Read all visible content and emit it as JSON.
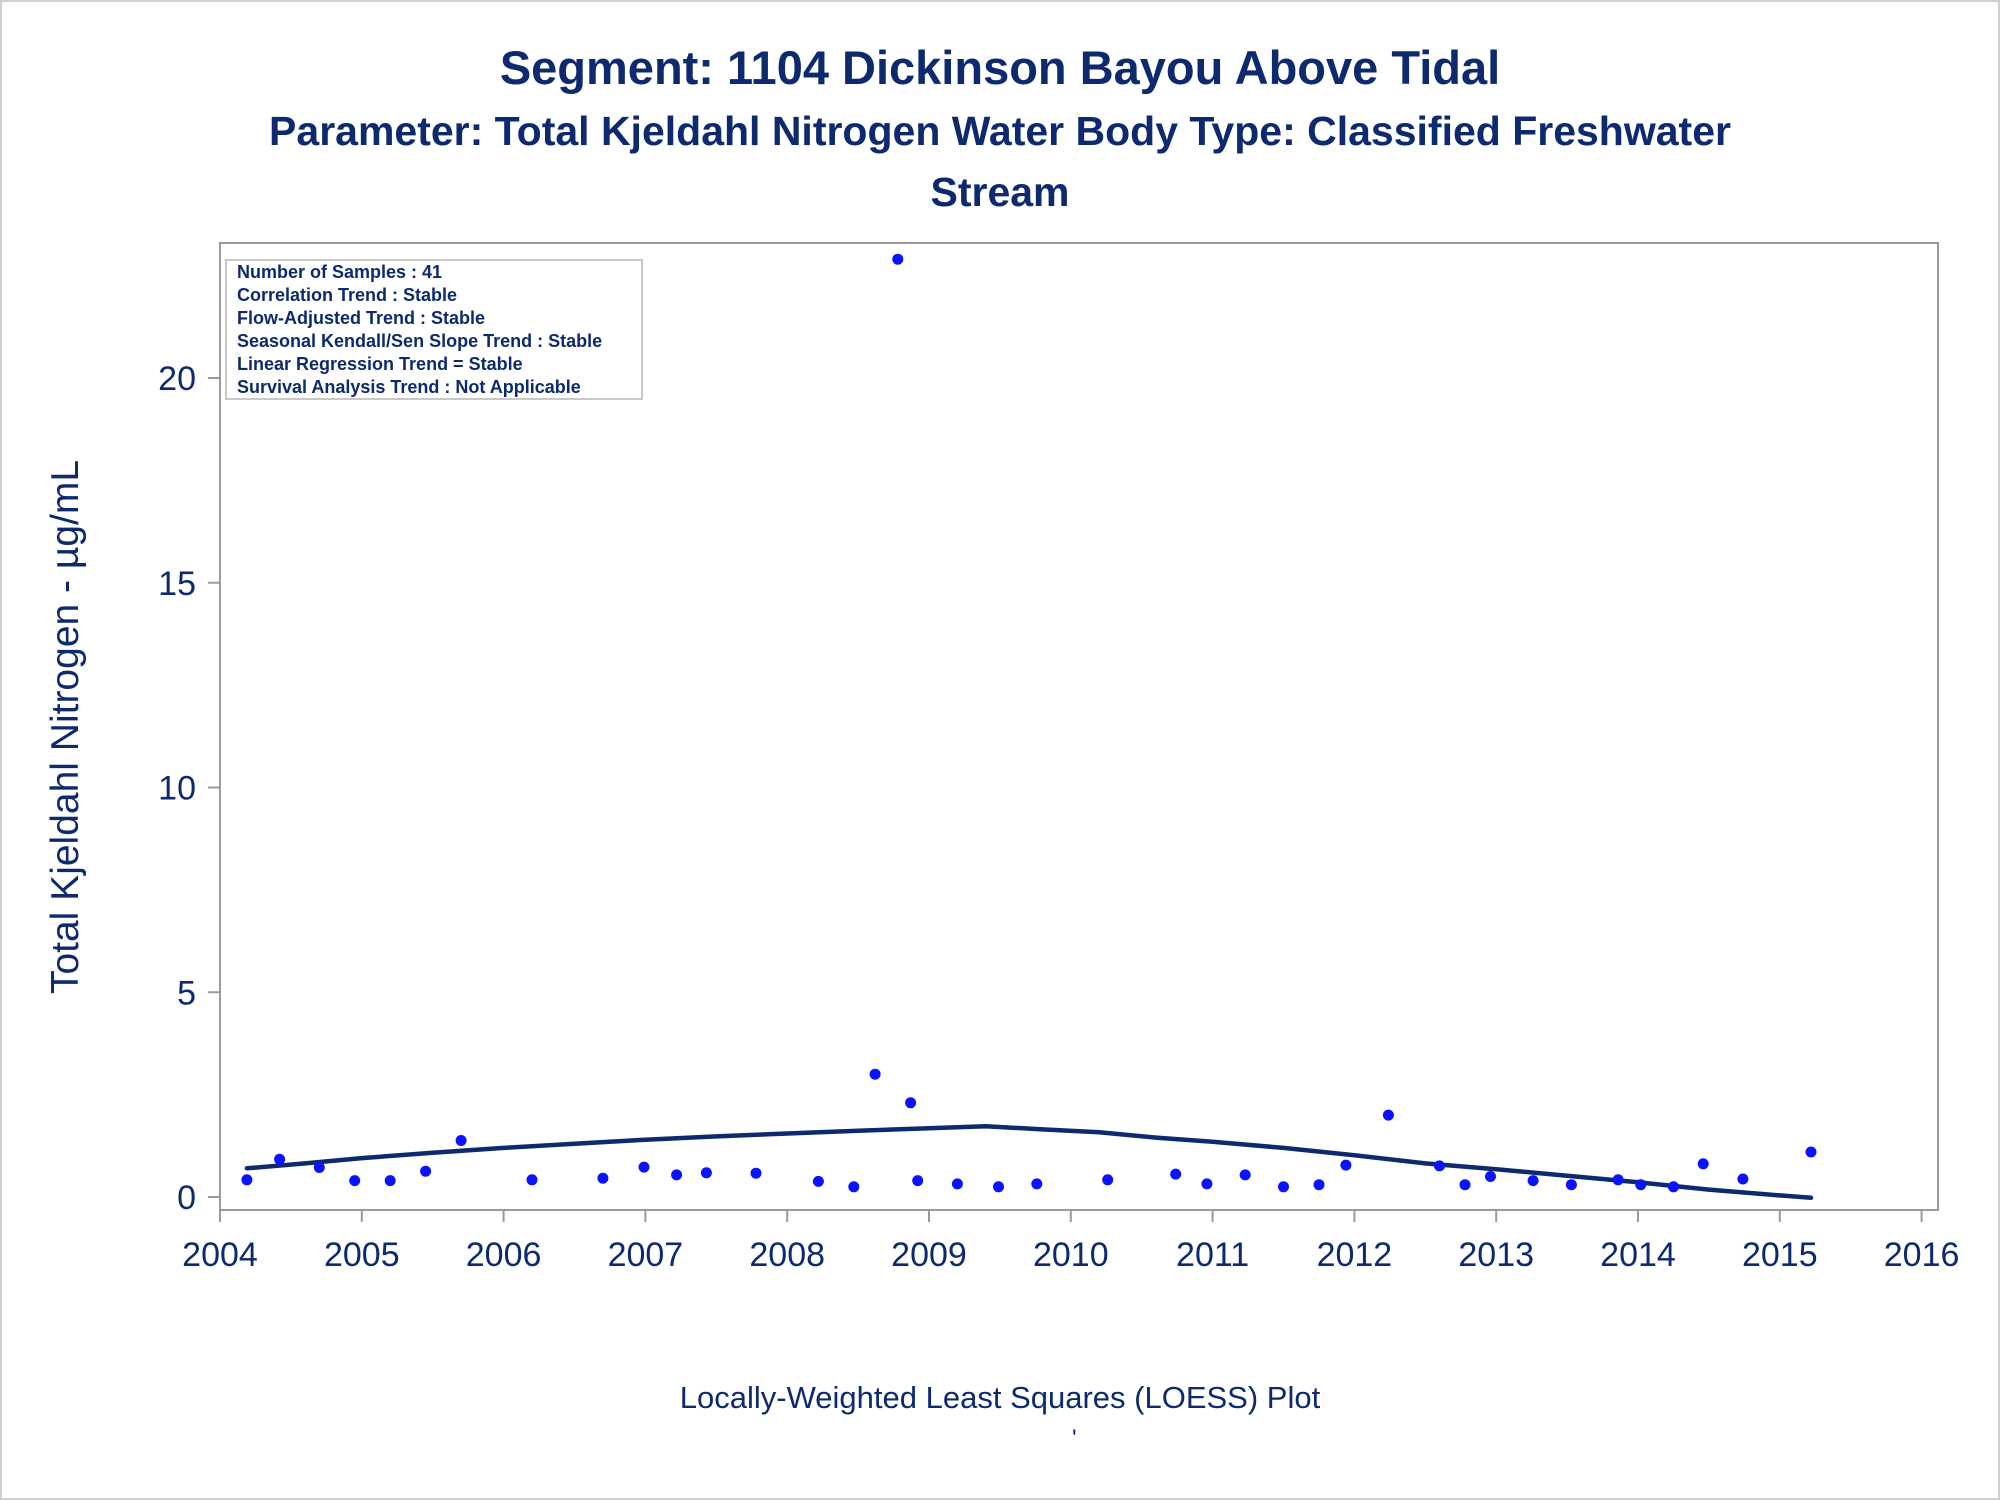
{
  "header": {
    "title_line1": "Segment: 1104  Dickinson Bayou Above Tidal",
    "title_line2": "Parameter: Total Kjeldahl Nitrogen   Water Body Type: Classified Freshwater",
    "title_line3": "Stream"
  },
  "stats_box": {
    "lines": [
      "Number of Samples : 41",
      "Correlation Trend : Stable",
      "Flow-Adjusted Trend : Stable",
      "Seasonal Kendall/Sen Slope Trend : Stable",
      "Linear Regression Trend = Stable",
      "Survival Analysis Trend : Not Applicable"
    ]
  },
  "footnote": {
    "text": "Locally-Weighted Least Squares (LOESS) Plot",
    "mark": "'"
  },
  "colors": {
    "text": "#0d2a6e",
    "points": "#0a12ff",
    "loess_line": "#0d2a6e",
    "axis": "#9a9a9a"
  },
  "chart_data": {
    "type": "scatter",
    "title": "Segment: 1104  Dickinson Bayou Above Tidal",
    "subtitle": "Parameter: Total Kjeldahl Nitrogen   Water Body Type: Classified Freshwater Stream",
    "xlabel": "",
    "ylabel": "Total Kjeldahl Nitrogen -  µg/mL",
    "xlim": [
      2004,
      2016
    ],
    "ylim": [
      0,
      23.5
    ],
    "x_ticks": [
      2004,
      2005,
      2006,
      2007,
      2008,
      2009,
      2010,
      2011,
      2012,
      2013,
      2014,
      2015,
      2016
    ],
    "y_ticks": [
      0,
      5,
      10,
      15,
      20
    ],
    "grid": false,
    "series": [
      {
        "type": "scatter",
        "points": [
          [
            2004.19,
            0.42
          ],
          [
            2004.42,
            0.92
          ],
          [
            2004.7,
            0.72
          ],
          [
            2004.95,
            0.4
          ],
          [
            2005.2,
            0.4
          ],
          [
            2005.45,
            0.63
          ],
          [
            2005.7,
            1.38
          ],
          [
            2006.2,
            0.42
          ],
          [
            2006.7,
            0.46
          ],
          [
            2006.99,
            0.73
          ],
          [
            2007.22,
            0.54
          ],
          [
            2007.43,
            0.59
          ],
          [
            2007.78,
            0.58
          ],
          [
            2008.22,
            0.38
          ],
          [
            2008.47,
            0.25
          ],
          [
            2008.62,
            3.0
          ],
          [
            2008.78,
            22.9
          ],
          [
            2008.87,
            2.3
          ],
          [
            2008.92,
            0.4
          ],
          [
            2009.2,
            0.32
          ],
          [
            2009.49,
            0.25
          ],
          [
            2009.76,
            0.32
          ],
          [
            2010.26,
            0.42
          ],
          [
            2010.74,
            0.56
          ],
          [
            2010.96,
            0.32
          ],
          [
            2011.23,
            0.54
          ],
          [
            2011.5,
            0.25
          ],
          [
            2011.75,
            0.3
          ],
          [
            2011.94,
            0.78
          ],
          [
            2012.24,
            2.0
          ],
          [
            2012.6,
            0.76
          ],
          [
            2012.78,
            0.3
          ],
          [
            2012.96,
            0.5
          ],
          [
            2013.26,
            0.4
          ],
          [
            2013.53,
            0.3
          ],
          [
            2013.86,
            0.42
          ],
          [
            2014.02,
            0.3
          ],
          [
            2014.25,
            0.25
          ],
          [
            2014.46,
            0.81
          ],
          [
            2014.74,
            0.44
          ],
          [
            2015.22,
            1.1
          ]
        ]
      },
      {
        "type": "line",
        "points": [
          [
            2004.19,
            0.7
          ],
          [
            2004.6,
            0.82
          ],
          [
            2005.0,
            0.95
          ],
          [
            2005.5,
            1.08
          ],
          [
            2006.0,
            1.2
          ],
          [
            2006.5,
            1.3
          ],
          [
            2007.0,
            1.4
          ],
          [
            2007.5,
            1.48
          ],
          [
            2008.0,
            1.55
          ],
          [
            2008.5,
            1.62
          ],
          [
            2009.0,
            1.68
          ],
          [
            2009.4,
            1.73
          ],
          [
            2009.8,
            1.65
          ],
          [
            2010.2,
            1.58
          ],
          [
            2010.6,
            1.45
          ],
          [
            2011.0,
            1.35
          ],
          [
            2011.5,
            1.2
          ],
          [
            2012.0,
            1.02
          ],
          [
            2012.5,
            0.82
          ],
          [
            2013.0,
            0.68
          ],
          [
            2013.5,
            0.52
          ],
          [
            2014.0,
            0.36
          ],
          [
            2014.5,
            0.18
          ],
          [
            2015.0,
            0.04
          ],
          [
            2015.22,
            -0.02
          ]
        ]
      }
    ]
  }
}
